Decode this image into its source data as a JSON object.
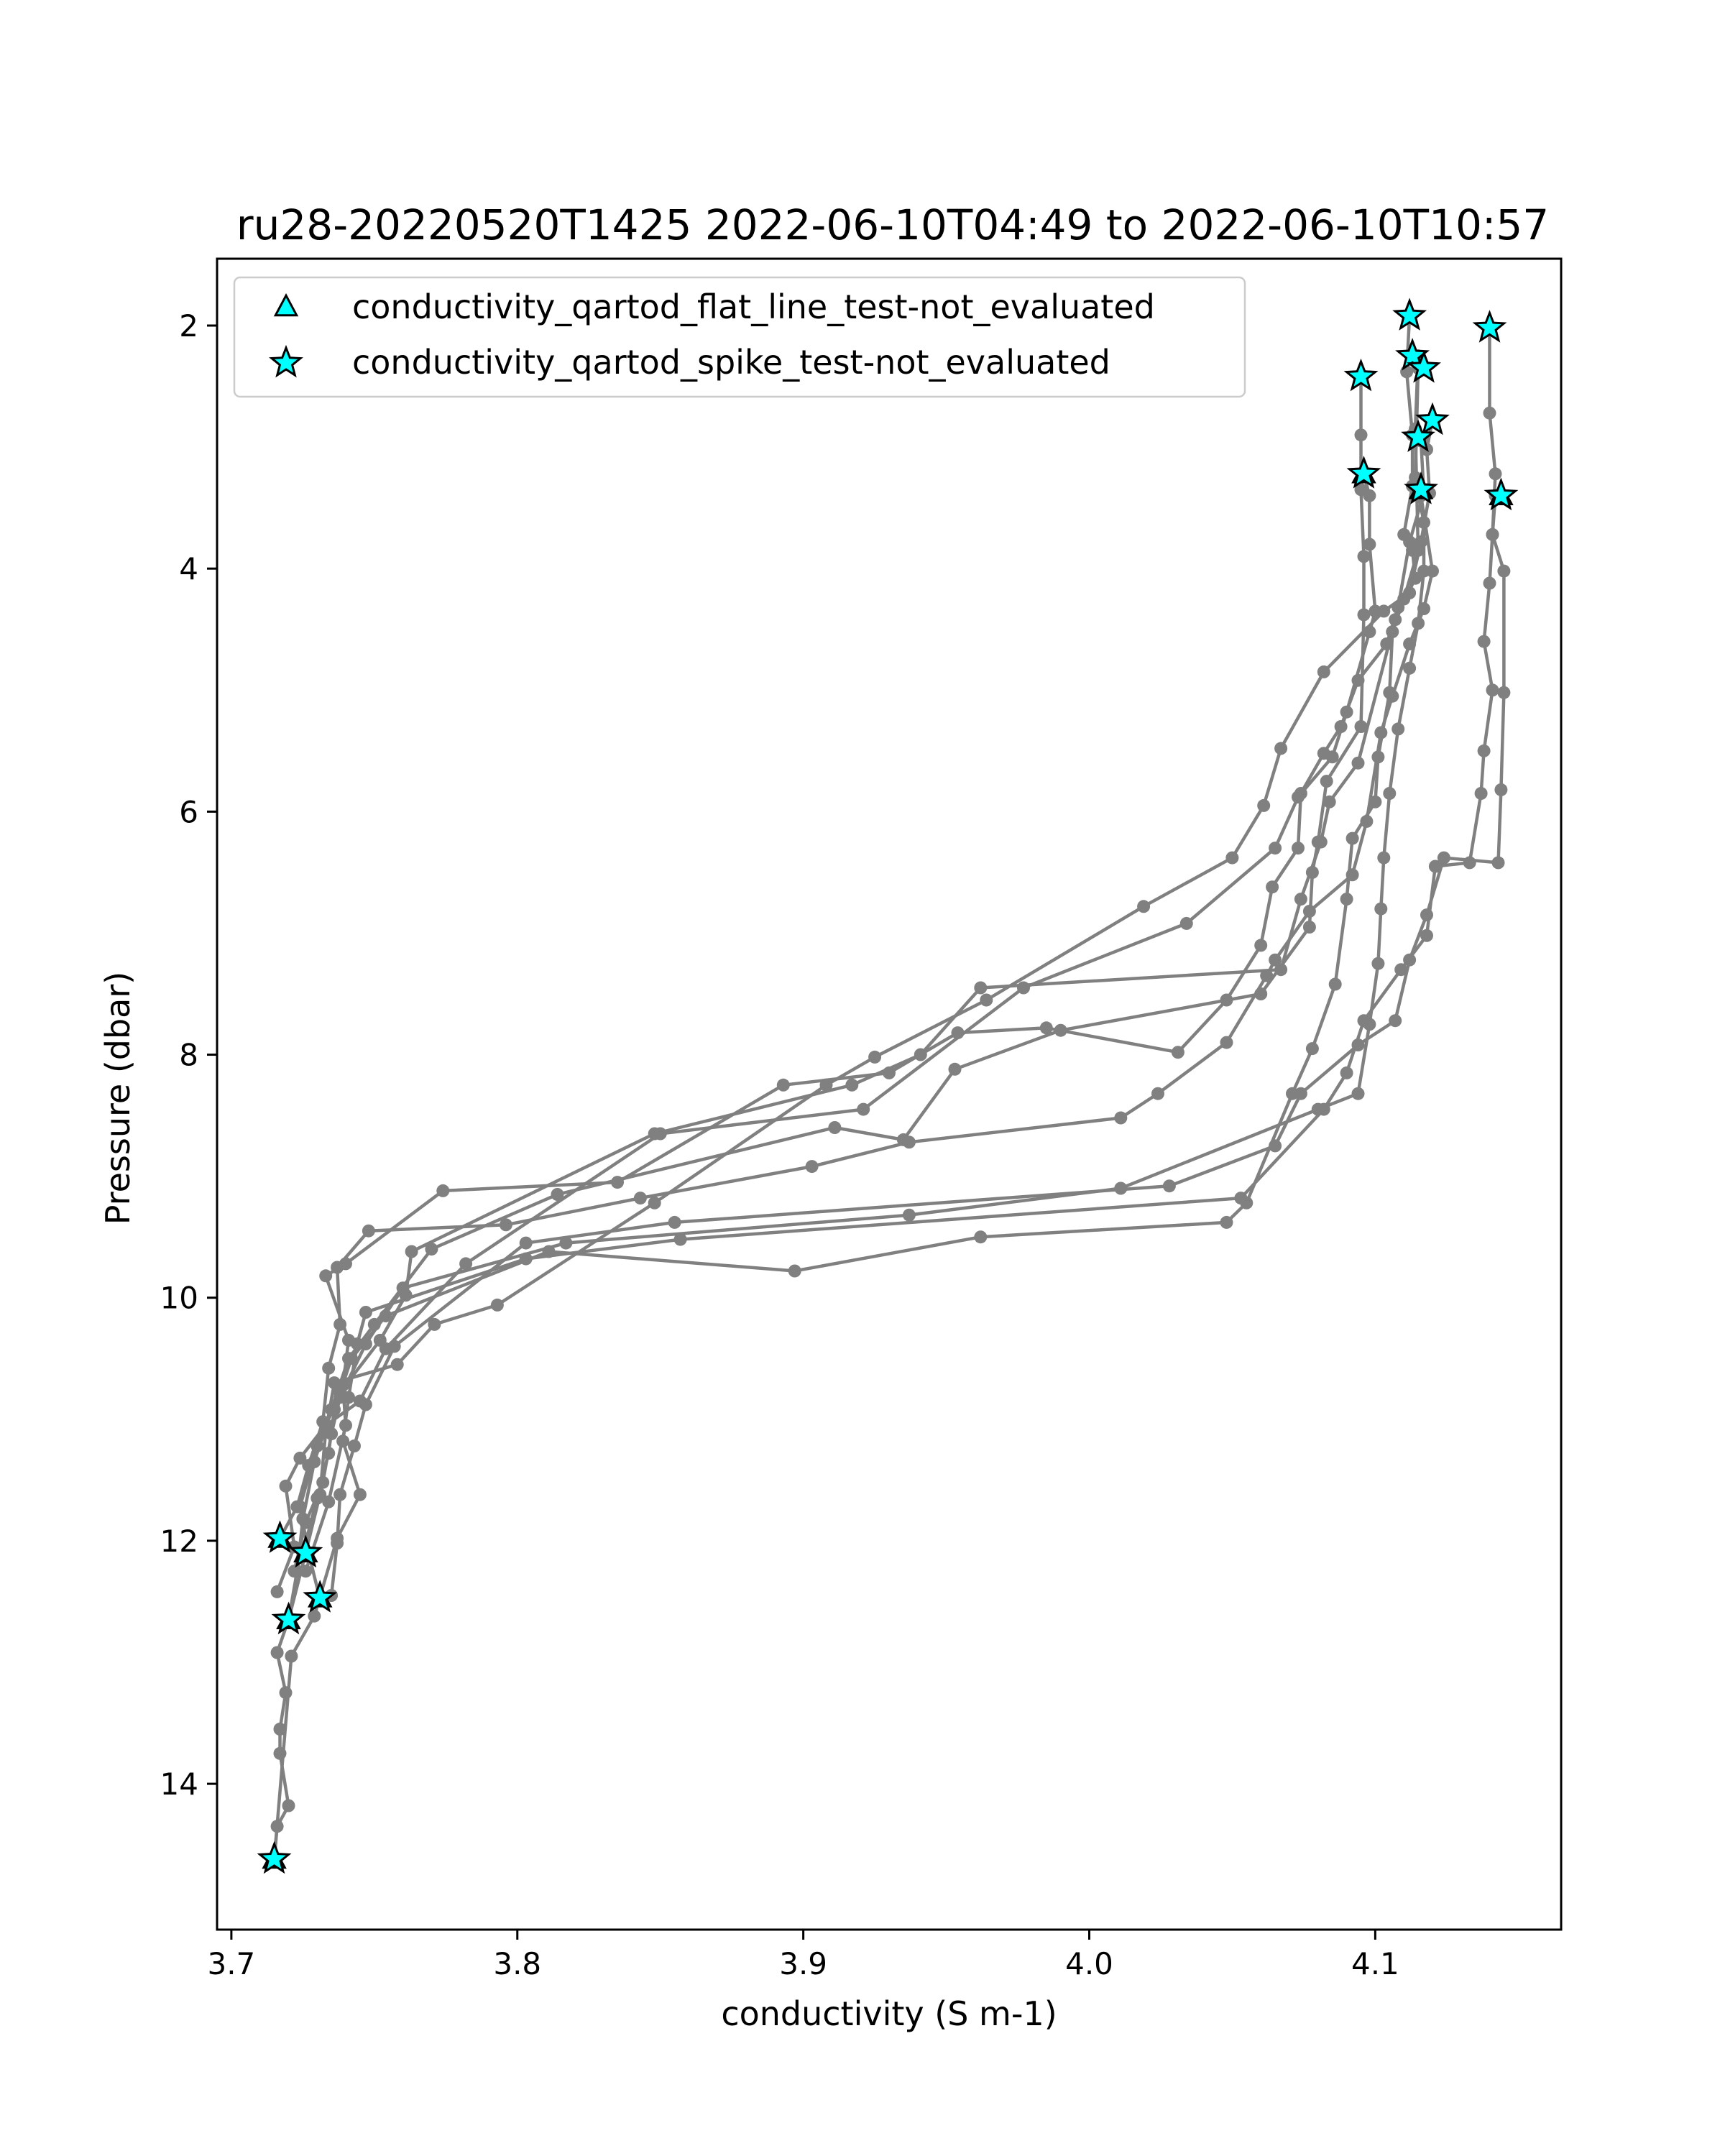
{
  "chart_data": {
    "type": "line",
    "title": "ru28-20220520T1425 2022-06-10T04:49 to 2022-06-10T10:57",
    "xlabel": "conductivity (S m-1)",
    "ylabel": "Pressure (dbar)",
    "xlim": [
      3.695,
      4.165
    ],
    "ylim": [
      15.2,
      1.45
    ],
    "y_inverted": true,
    "xticks": [
      3.7,
      3.8,
      3.9,
      4.0,
      4.1
    ],
    "xtick_labels": [
      "3.7",
      "3.8",
      "3.9",
      "4.0",
      "4.1"
    ],
    "yticks": [
      2,
      4,
      6,
      8,
      10,
      12,
      14
    ],
    "ytick_labels": [
      "2",
      "4",
      "6",
      "8",
      "10",
      "12",
      "14"
    ],
    "grid": false,
    "legend_position": "upper-left",
    "line_color": "#808080",
    "marker_color": "#00ffff",
    "legend": [
      {
        "label": "conductivity_qartod_flat_line_test-not_evaluated",
        "marker": "triangle"
      },
      {
        "label": "conductivity_qartod_spike_test-not_evaluated",
        "marker": "star"
      }
    ],
    "series": [
      {
        "points": [
          [
            3.715,
            14.62
          ],
          [
            3.716,
            14.35
          ],
          [
            3.72,
            14.18
          ],
          [
            3.717,
            13.75
          ],
          [
            3.717,
            13.55
          ],
          [
            3.719,
            13.25
          ],
          [
            3.716,
            12.92
          ],
          [
            3.72,
            12.65
          ],
          [
            3.726,
            12.1
          ],
          [
            3.731,
            11.62
          ],
          [
            3.733,
            11.1
          ],
          [
            3.736,
            10.7
          ],
          [
            3.758,
            10.55
          ],
          [
            3.771,
            10.22
          ],
          [
            3.793,
            10.06
          ],
          [
            3.848,
            9.22
          ],
          [
            3.908,
            8.25
          ],
          [
            3.925,
            8.02
          ],
          [
            3.964,
            7.55
          ],
          [
            4.019,
            6.78
          ],
          [
            4.05,
            6.38
          ],
          [
            4.061,
            5.95
          ],
          [
            4.067,
            5.48
          ],
          [
            4.082,
            4.85
          ],
          [
            4.103,
            4.35
          ],
          [
            4.112,
            4.2
          ],
          [
            4.116,
            3.78
          ],
          [
            4.119,
            3.38
          ],
          [
            4.118,
            3.02
          ],
          [
            4.12,
            2.78
          ]
        ]
      },
      {
        "points": [
          [
            3.716,
            12.42
          ],
          [
            3.722,
            12.05
          ],
          [
            3.719,
            11.55
          ],
          [
            3.724,
            11.32
          ],
          [
            3.733,
            11.05
          ],
          [
            3.745,
            10.85
          ],
          [
            3.754,
            10.42
          ],
          [
            3.782,
            9.72
          ],
          [
            3.85,
            8.65
          ],
          [
            3.921,
            8.45
          ],
          [
            3.977,
            7.45
          ],
          [
            4.034,
            6.92
          ],
          [
            4.065,
            6.3
          ],
          [
            4.073,
            5.88
          ],
          [
            4.085,
            5.55
          ],
          [
            4.09,
            5.18
          ],
          [
            4.098,
            4.52
          ],
          [
            4.1,
            4.35
          ],
          [
            4.098,
            3.8
          ],
          [
            4.098,
            3.4
          ],
          [
            4.096,
            3.22
          ]
        ]
      },
      {
        "points": [
          [
            3.72,
            12.65
          ],
          [
            3.723,
            12.25
          ],
          [
            3.725,
            11.82
          ],
          [
            3.729,
            11.35
          ],
          [
            3.735,
            10.92
          ],
          [
            3.741,
            10.5
          ],
          [
            3.75,
            10.22
          ],
          [
            3.77,
            9.6
          ],
          [
            3.814,
            9.15
          ],
          [
            3.911,
            8.6
          ],
          [
            3.935,
            8.7
          ],
          [
            3.953,
            8.12
          ],
          [
            3.99,
            7.8
          ],
          [
            4.06,
            7.5
          ],
          [
            4.077,
            6.95
          ],
          [
            4.078,
            6.5
          ],
          [
            4.08,
            6.25
          ],
          [
            4.083,
            5.75
          ],
          [
            4.095,
            5.3
          ],
          [
            4.096,
            4.38
          ],
          [
            4.096,
            3.9
          ],
          [
            4.095,
            3.35
          ],
          [
            4.095,
            2.9
          ],
          [
            4.095,
            2.42
          ]
        ]
      },
      {
        "points": [
          [
            3.731,
            12.48
          ],
          [
            3.727,
            12.1
          ],
          [
            3.724,
            11.72
          ],
          [
            3.73,
            11.22
          ],
          [
            3.738,
            10.78
          ],
          [
            3.752,
            10.35
          ],
          [
            3.761,
            9.98
          ],
          [
            3.763,
            9.62
          ],
          [
            3.848,
            8.65
          ],
          [
            3.917,
            8.25
          ],
          [
            3.941,
            8.0
          ],
          [
            3.962,
            7.45
          ],
          [
            4.067,
            7.3
          ],
          [
            4.074,
            6.72
          ],
          [
            4.081,
            6.25
          ],
          [
            4.084,
            5.92
          ],
          [
            4.094,
            5.6
          ],
          [
            4.107,
            4.42
          ],
          [
            4.114,
            4.08
          ],
          [
            4.113,
            3.85
          ],
          [
            4.11,
            3.72
          ],
          [
            4.113,
            3.32
          ],
          [
            4.113,
            2.9
          ],
          [
            4.111,
            2.38
          ],
          [
            4.112,
            1.92
          ]
        ]
      },
      {
        "points": [
          [
            3.725,
            12.1
          ],
          [
            3.73,
            11.65
          ],
          [
            3.734,
            11.28
          ],
          [
            3.736,
            10.92
          ],
          [
            3.742,
            10.5
          ],
          [
            3.754,
            10.15
          ],
          [
            3.811,
            9.62
          ],
          [
            3.897,
            9.78
          ],
          [
            3.962,
            9.5
          ],
          [
            4.048,
            9.38
          ],
          [
            4.055,
            9.22
          ],
          [
            4.071,
            8.32
          ],
          [
            4.078,
            7.95
          ],
          [
            4.086,
            7.42
          ],
          [
            4.09,
            6.72
          ],
          [
            4.092,
            6.22
          ],
          [
            4.1,
            5.92
          ],
          [
            4.101,
            5.55
          ],
          [
            4.105,
            5.02
          ],
          [
            4.106,
            4.52
          ],
          [
            4.11,
            4.25
          ],
          [
            4.115,
            3.85
          ],
          [
            4.114,
            2.85
          ],
          [
            4.115,
            2.25
          ]
        ]
      },
      {
        "points": [
          [
            3.722,
            12.25
          ],
          [
            3.726,
            11.85
          ],
          [
            3.732,
            11.52
          ],
          [
            3.735,
            11.12
          ],
          [
            3.738,
            10.82
          ],
          [
            3.747,
            10.38
          ],
          [
            3.76,
            9.92
          ],
          [
            3.817,
            9.55
          ],
          [
            3.937,
            9.32
          ],
          [
            4.011,
            9.1
          ],
          [
            4.08,
            8.45
          ],
          [
            4.094,
            8.32
          ],
          [
            4.098,
            7.75
          ],
          [
            4.101,
            7.25
          ],
          [
            4.102,
            6.8
          ],
          [
            4.103,
            6.38
          ],
          [
            4.105,
            5.85
          ],
          [
            4.108,
            5.32
          ],
          [
            4.112,
            4.82
          ],
          [
            4.115,
            4.45
          ],
          [
            4.117,
            4.02
          ],
          [
            4.117,
            3.62
          ],
          [
            4.114,
            3.25
          ],
          [
            4.115,
            2.35
          ]
        ]
      },
      {
        "points": [
          [
            3.726,
            12.25
          ],
          [
            3.734,
            11.68
          ],
          [
            3.74,
            11.05
          ],
          [
            3.739,
            10.72
          ],
          [
            3.741,
            10.35
          ],
          [
            3.733,
            9.82
          ],
          [
            3.74,
            9.72
          ],
          [
            3.774,
            9.12
          ],
          [
            3.835,
            9.05
          ],
          [
            3.893,
            8.25
          ],
          [
            3.93,
            8.15
          ],
          [
            3.954,
            7.82
          ],
          [
            3.985,
            7.78
          ],
          [
            4.031,
            7.98
          ],
          [
            4.048,
            7.55
          ],
          [
            4.06,
            7.1
          ],
          [
            4.064,
            6.62
          ],
          [
            4.073,
            6.3
          ],
          [
            4.074,
            5.85
          ],
          [
            4.082,
            5.52
          ],
          [
            4.088,
            5.3
          ],
          [
            4.094,
            4.92
          ],
          [
            4.104,
            4.62
          ],
          [
            4.108,
            4.32
          ],
          [
            4.112,
            3.78
          ],
          [
            4.117,
            3.38
          ],
          [
            4.116,
            2.95
          ]
        ]
      },
      {
        "points": [
          [
            3.717,
            11.98
          ],
          [
            3.723,
            11.72
          ],
          [
            3.727,
            11.38
          ],
          [
            3.732,
            11.02
          ],
          [
            3.734,
            10.58
          ],
          [
            3.738,
            10.22
          ],
          [
            3.737,
            9.75
          ],
          [
            3.748,
            9.45
          ],
          [
            3.796,
            9.4
          ],
          [
            3.843,
            9.18
          ],
          [
            3.903,
            8.92
          ],
          [
            3.937,
            8.72
          ],
          [
            4.011,
            8.52
          ],
          [
            4.024,
            8.32
          ],
          [
            4.048,
            7.9
          ],
          [
            4.062,
            7.35
          ],
          [
            4.065,
            7.22
          ],
          [
            4.077,
            6.82
          ],
          [
            4.092,
            6.52
          ],
          [
            4.097,
            6.08
          ],
          [
            4.102,
            5.35
          ],
          [
            4.106,
            5.05
          ],
          [
            4.112,
            4.62
          ],
          [
            4.117,
            4.33
          ],
          [
            4.12,
            4.02
          ],
          [
            4.116,
            3.4
          ]
        ]
      },
      {
        "points": [
          [
            3.715,
            14.62
          ],
          [
            3.721,
            12.95
          ],
          [
            3.729,
            12.62
          ],
          [
            3.737,
            11.98
          ],
          [
            3.745,
            11.62
          ],
          [
            3.739,
            11.18
          ],
          [
            3.741,
            10.82
          ],
          [
            3.744,
            10.38
          ],
          [
            3.747,
            10.12
          ],
          [
            3.803,
            9.68
          ],
          [
            3.857,
            9.52
          ],
          [
            4.053,
            9.18
          ],
          [
            4.082,
            8.45
          ],
          [
            4.09,
            8.15
          ],
          [
            4.096,
            7.72
          ],
          [
            4.109,
            7.3
          ],
          [
            4.118,
            7.02
          ],
          [
            4.121,
            6.45
          ],
          [
            4.133,
            6.42
          ],
          [
            4.137,
            5.85
          ],
          [
            4.138,
            5.5
          ],
          [
            4.141,
            5.0
          ],
          [
            4.138,
            4.6
          ],
          [
            4.14,
            4.12
          ],
          [
            4.141,
            3.72
          ],
          [
            4.142,
            3.22
          ],
          [
            4.14,
            2.72
          ],
          [
            4.14,
            2.02
          ]
        ]
      },
      {
        "points": [
          [
            3.735,
            12.45
          ],
          [
            3.737,
            12.02
          ],
          [
            3.738,
            11.62
          ],
          [
            3.743,
            11.22
          ],
          [
            3.747,
            10.88
          ],
          [
            3.757,
            10.4
          ],
          [
            3.803,
            9.55
          ],
          [
            3.855,
            9.38
          ],
          [
            4.028,
            9.08
          ],
          [
            4.065,
            8.75
          ],
          [
            4.074,
            8.32
          ],
          [
            4.094,
            7.92
          ],
          [
            4.107,
            7.72
          ],
          [
            4.112,
            7.22
          ],
          [
            4.118,
            6.85
          ],
          [
            4.124,
            6.38
          ],
          [
            4.143,
            6.42
          ],
          [
            4.144,
            5.82
          ],
          [
            4.145,
            5.02
          ],
          [
            4.145,
            4.02
          ],
          [
            4.141,
            3.72
          ],
          [
            4.142,
            3.4
          ]
        ]
      }
    ],
    "flags_spike_test": [
      [
        4.112,
        1.92
      ],
      [
        4.14,
        2.02
      ],
      [
        4.113,
        2.25
      ],
      [
        4.117,
        2.35
      ],
      [
        4.095,
        2.42
      ],
      [
        4.12,
        2.78
      ],
      [
        4.115,
        2.92
      ],
      [
        4.096,
        3.22
      ],
      [
        4.116,
        3.35
      ],
      [
        4.144,
        3.4
      ],
      [
        3.717,
        11.98
      ],
      [
        3.726,
        12.1
      ],
      [
        3.731,
        12.47
      ],
      [
        3.72,
        12.65
      ],
      [
        3.715,
        14.62
      ]
    ],
    "flags_flat_line_test": [
      [
        3.717,
        11.98
      ],
      [
        3.726,
        12.1
      ],
      [
        3.731,
        12.47
      ],
      [
        3.72,
        12.65
      ],
      [
        3.715,
        14.62
      ],
      [
        4.096,
        3.22
      ],
      [
        4.116,
        3.35
      ],
      [
        4.144,
        3.4
      ]
    ]
  }
}
